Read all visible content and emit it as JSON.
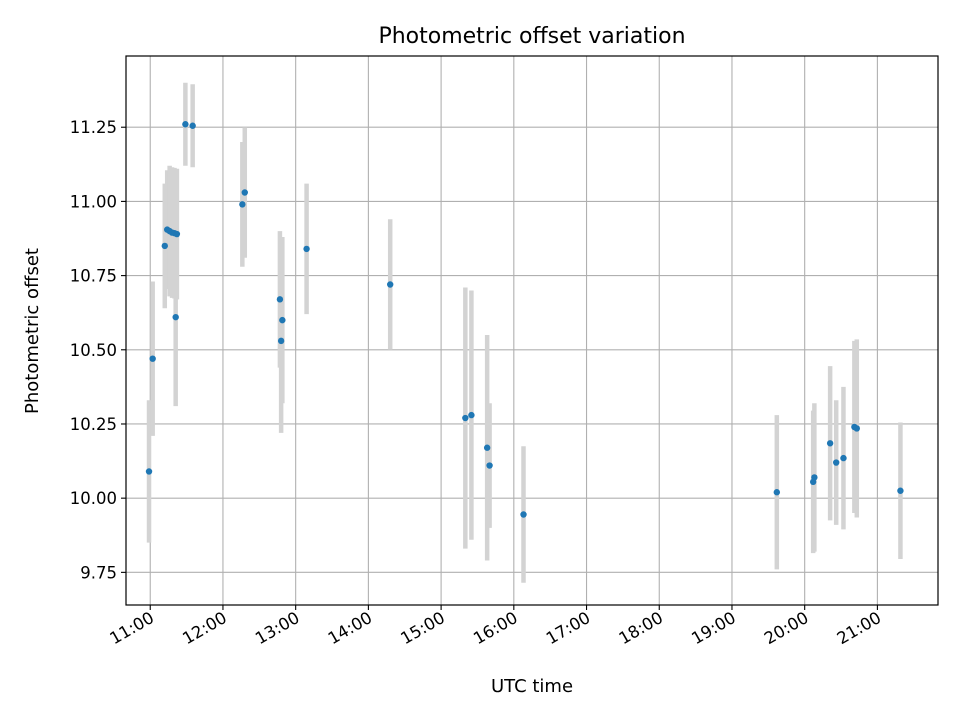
{
  "chart_data": {
    "type": "scatter",
    "title": "Photometric offset variation",
    "xlabel": "UTC time",
    "ylabel": "Photometric offset",
    "xlim": [
      "10:40",
      "21:50"
    ],
    "ylim": [
      9.64,
      11.49
    ],
    "grid": true,
    "x_ticks": [
      "11:00",
      "12:00",
      "13:00",
      "14:00",
      "15:00",
      "16:00",
      "17:00",
      "18:00",
      "19:00",
      "20:00",
      "21:00"
    ],
    "y_ticks": [
      9.75,
      10.0,
      10.25,
      10.5,
      10.75,
      11.0,
      11.25
    ],
    "y_tick_labels": [
      "9.75",
      "10.00",
      "10.25",
      "10.50",
      "10.75",
      "11.00",
      "11.25"
    ],
    "colors": {
      "point": "#1f77b4",
      "errorbar": "#d3d3d3"
    },
    "series": [
      {
        "points": [
          {
            "x": "10:59",
            "y": 10.09,
            "err": 0.24
          },
          {
            "x": "11:02",
            "y": 10.47,
            "err": 0.26
          },
          {
            "x": "11:12",
            "y": 10.85,
            "err": 0.21
          },
          {
            "x": "11:14",
            "y": 10.905,
            "err": 0.2
          },
          {
            "x": "11:16",
            "y": 10.9,
            "err": 0.22
          },
          {
            "x": "11:18",
            "y": 10.895,
            "err": 0.22
          },
          {
            "x": "11:20",
            "y": 10.893,
            "err": 0.22
          },
          {
            "x": "11:22",
            "y": 10.89,
            "err": 0.22
          },
          {
            "x": "11:21",
            "y": 10.61,
            "err": 0.3
          },
          {
            "x": "11:29",
            "y": 11.26,
            "err": 0.14
          },
          {
            "x": "11:35",
            "y": 11.255,
            "err": 0.14
          },
          {
            "x": "12:16",
            "y": 10.99,
            "err": 0.21
          },
          {
            "x": "12:18",
            "y": 11.03,
            "err": 0.22
          },
          {
            "x": "12:47",
            "y": 10.67,
            "err": 0.23
          },
          {
            "x": "12:48",
            "y": 10.53,
            "err": 0.31
          },
          {
            "x": "12:49",
            "y": 10.6,
            "err": 0.28
          },
          {
            "x": "13:09",
            "y": 10.84,
            "err": 0.22
          },
          {
            "x": "14:18",
            "y": 10.72,
            "err": 0.22
          },
          {
            "x": "15:20",
            "y": 10.27,
            "err": 0.44
          },
          {
            "x": "15:25",
            "y": 10.28,
            "err": 0.42
          },
          {
            "x": "15:38",
            "y": 10.17,
            "err": 0.38
          },
          {
            "x": "15:40",
            "y": 10.11,
            "err": 0.21
          },
          {
            "x": "16:08",
            "y": 9.945,
            "err": 0.23
          },
          {
            "x": "19:37",
            "y": 10.02,
            "err": 0.26
          },
          {
            "x": "20:07",
            "y": 10.055,
            "err": 0.24
          },
          {
            "x": "20:08",
            "y": 10.07,
            "err": 0.25
          },
          {
            "x": "20:21",
            "y": 10.185,
            "err": 0.26
          },
          {
            "x": "20:26",
            "y": 10.12,
            "err": 0.21
          },
          {
            "x": "20:32",
            "y": 10.135,
            "err": 0.24
          },
          {
            "x": "20:41",
            "y": 10.24,
            "err": 0.29
          },
          {
            "x": "20:43",
            "y": 10.235,
            "err": 0.3
          },
          {
            "x": "21:19",
            "y": 10.025,
            "err": 0.23
          }
        ]
      }
    ]
  }
}
